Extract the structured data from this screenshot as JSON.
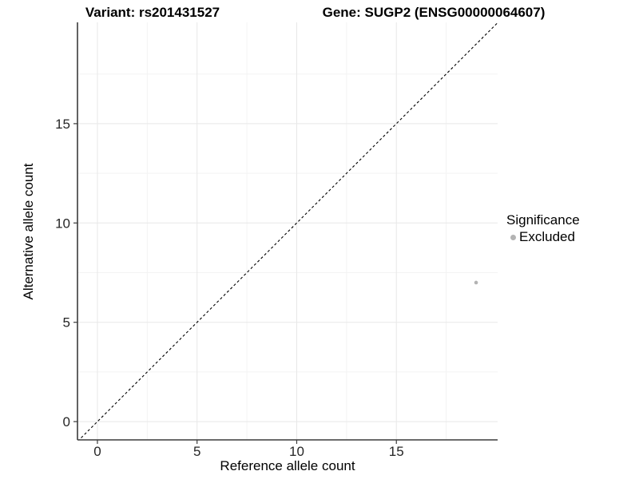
{
  "chart_data": {
    "type": "scatter",
    "title_left": "Variant: rs201431527",
    "title_right": "Gene: SUGP2 (ENSG00000064607)",
    "xlabel": "Reference allele count",
    "ylabel": "Alternative allele count",
    "x_ticks": [
      0,
      5,
      10,
      15
    ],
    "y_ticks": [
      0,
      5,
      10,
      15
    ],
    "x_minor_ticks": [
      2.5,
      7.5,
      12.5,
      17.5
    ],
    "y_minor_ticks": [
      2.5,
      7.5,
      12.5,
      17.5
    ],
    "xlim": [
      -1.0,
      20.08
    ],
    "ylim": [
      -0.92,
      20.1
    ],
    "grid": {
      "major_color": "#e8e8e8",
      "minor_color": "#f3f3f3",
      "enabled": true
    },
    "axis_color": "#3b3b3b",
    "identity_line": {
      "style": "dashed",
      "color": "#000000",
      "from": [
        -1.5,
        -1.5
      ],
      "to": [
        21.0,
        21.0
      ]
    },
    "series": [
      {
        "name": "Excluded",
        "color": "#b3b3b3",
        "point_radius": 2.3,
        "points": [
          {
            "x": 19,
            "y": 7
          }
        ]
      }
    ],
    "legend": {
      "position": "right",
      "title": "Significance",
      "items": [
        {
          "label": "Excluded",
          "color": "#b3b3b3"
        }
      ]
    }
  }
}
